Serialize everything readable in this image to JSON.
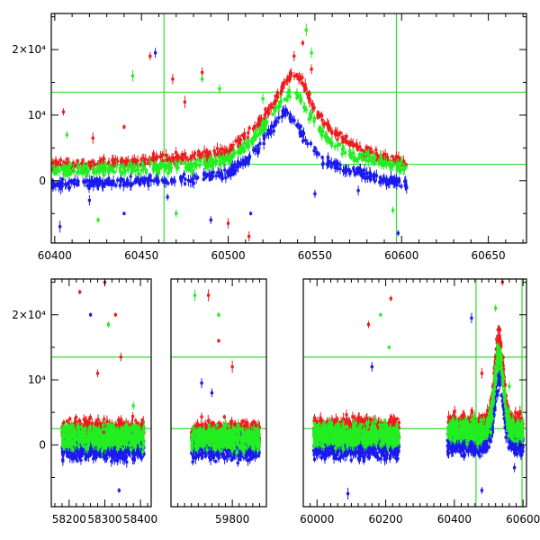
{
  "chart_data": [
    {
      "type": "scatter",
      "title": "",
      "xlabel": "",
      "ylabel": "",
      "xlim": [
        60398,
        60672
      ],
      "ylim": [
        -9500,
        25500
      ],
      "x_ticks": [
        60400,
        60450,
        60500,
        60550,
        60600,
        60650
      ],
      "x_tick_labels": [
        "60400",
        "60450",
        "60500",
        "60550",
        "60600",
        "60650"
      ],
      "y_ticks": [
        0,
        10000,
        20000
      ],
      "y_tick_labels": [
        "0",
        "10⁴",
        "2×10⁴"
      ],
      "vertical_lines": [
        60463,
        60597
      ],
      "horizontal_lines": [
        13500,
        2500
      ],
      "reference_line_color": "#33dd33",
      "series": [
        {
          "color": "#ee1c1c",
          "base": [
            [
              60400,
              2400
            ],
            [
              60430,
              2600
            ],
            [
              60460,
              3200
            ],
            [
              60480,
              3600
            ],
            [
              60500,
              4500
            ],
            [
              60515,
              8000
            ],
            [
              60525,
              11500
            ],
            [
              60532,
              14500
            ],
            [
              60538,
              16500
            ],
            [
              60543,
              15000
            ],
            [
              60550,
              11000
            ],
            [
              60560,
              7500
            ],
            [
              60575,
              5000
            ],
            [
              60590,
              3500
            ],
            [
              60602,
              2600
            ]
          ],
          "outliers": [
            [
              60405,
              10500
            ],
            [
              60422,
              6500
            ],
            [
              60440,
              8200
            ],
            [
              60455,
              19000
            ],
            [
              60468,
              15500
            ],
            [
              60475,
              12000
            ],
            [
              60485,
              16500
            ],
            [
              60500,
              -6500
            ],
            [
              60512,
              -8500
            ],
            [
              60538,
              19000
            ],
            [
              60543,
              21000
            ],
            [
              60548,
              17000
            ]
          ]
        },
        {
          "color": "#1a1aee",
          "base": [
            [
              60400,
              -500
            ],
            [
              60430,
              -300
            ],
            [
              60460,
              0
            ],
            [
              60480,
              300
            ],
            [
              60500,
              1000
            ],
            [
              60515,
              4000
            ],
            [
              60525,
              8000
            ],
            [
              60532,
              10500
            ],
            [
              60538,
              9000
            ],
            [
              60545,
              6000
            ],
            [
              60555,
              3000
            ],
            [
              60570,
              1500
            ],
            [
              60590,
              200
            ],
            [
              60602,
              -500
            ]
          ],
          "outliers": [
            [
              60403,
              -7000
            ],
            [
              60420,
              -3000
            ],
            [
              60440,
              -5000
            ],
            [
              60458,
              19500
            ],
            [
              60465,
              -2500
            ],
            [
              60490,
              -6000
            ],
            [
              60513,
              -5000
            ],
            [
              60550,
              -2000
            ],
            [
              60575,
              -1500
            ],
            [
              60598,
              -8000
            ]
          ]
        },
        {
          "color": "#22ee22",
          "base": [
            [
              60400,
              1500
            ],
            [
              60430,
              1600
            ],
            [
              60460,
              2000
            ],
            [
              60480,
              2300
            ],
            [
              60500,
              3200
            ],
            [
              60515,
              6500
            ],
            [
              60525,
              10000
            ],
            [
              60532,
              12500
            ],
            [
              60538,
              14000
            ],
            [
              60545,
              11000
            ],
            [
              60555,
              7000
            ],
            [
              60570,
              4200
            ],
            [
              60590,
              2800
            ],
            [
              60602,
              2000
            ]
          ],
          "outliers": [
            [
              60407,
              7000
            ],
            [
              60425,
              -6000
            ],
            [
              60445,
              16000
            ],
            [
              60470,
              -5000
            ],
            [
              60485,
              15500
            ],
            [
              60495,
              14000
            ],
            [
              60520,
              12500
            ],
            [
              60545,
              23000
            ],
            [
              60548,
              19500
            ],
            [
              60595,
              -4500
            ]
          ]
        }
      ]
    },
    {
      "type": "scatter",
      "title": "",
      "xlabel": "",
      "ylabel": "",
      "ylim": [
        -9500,
        25500
      ],
      "y_ticks": [
        0,
        10000,
        20000
      ],
      "y_tick_labels": [
        "0",
        "10⁴",
        "2×10⁴"
      ],
      "x_segments": [
        {
          "range": [
            58150,
            58430
          ],
          "ticks": [
            58200,
            58300,
            58400
          ],
          "tick_labels": [
            "58200",
            "58300",
            "58400"
          ]
        },
        {
          "range": [
            59620,
            59900
          ],
          "ticks": [
            59800
          ],
          "tick_labels": [
            "59800"
          ]
        },
        {
          "range": [
            59960,
            60610
          ],
          "ticks": [
            60000,
            60200,
            60400,
            60600
          ],
          "tick_labels": [
            "60000",
            "60200",
            "60400",
            "60600"
          ]
        }
      ],
      "vertical_lines": [
        60463,
        60597
      ],
      "horizontal_lines": [
        13500,
        2500
      ],
      "reference_line_color": "#33dd33",
      "series": [
        {
          "color": "#ee1c1c",
          "ranges": [
            [
              58180,
              58410,
              2000
            ],
            [
              59680,
              59880,
              1800
            ],
            [
              59990,
              60240,
              2300
            ],
            [
              60380,
              60600,
              3000
            ]
          ],
          "peak": [
            60530,
            16500
          ],
          "outliers": [
            [
              58230,
              23500
            ],
            [
              58300,
              25000
            ],
            [
              58330,
              20000
            ],
            [
              58345,
              13500
            ],
            [
              58280,
              11000
            ],
            [
              59730,
              23000
            ],
            [
              59760,
              16000
            ],
            [
              59800,
              12000
            ],
            [
              60150,
              18500
            ],
            [
              60215,
              22500
            ],
            [
              60480,
              11000
            ],
            [
              60540,
              25000
            ]
          ]
        },
        {
          "color": "#1a1aee",
          "ranges": [
            [
              58180,
              58410,
              -500
            ],
            [
              59680,
              59880,
              -400
            ],
            [
              59990,
              60240,
              -300
            ],
            [
              60380,
              60600,
              200
            ]
          ],
          "peak": [
            60530,
            10500
          ],
          "outliers": [
            [
              58260,
              20000
            ],
            [
              58340,
              -7000
            ],
            [
              59710,
              9500
            ],
            [
              59740,
              8000
            ],
            [
              60090,
              -7500
            ],
            [
              60160,
              12000
            ],
            [
              60450,
              19500
            ],
            [
              60480,
              -7000
            ],
            [
              60575,
              -3500
            ]
          ]
        },
        {
          "color": "#22ee22",
          "ranges": [
            [
              58180,
              58410,
              1200
            ],
            [
              59680,
              59880,
              1000
            ],
            [
              59990,
              60240,
              1500
            ],
            [
              60380,
              60600,
              2200
            ]
          ],
          "peak": [
            60530,
            14000
          ],
          "outliers": [
            [
              58310,
              18500
            ],
            [
              58380,
              6000
            ],
            [
              59690,
              23000
            ],
            [
              59760,
              20000
            ],
            [
              60185,
              20000
            ],
            [
              60210,
              15000
            ],
            [
              60560,
              9000
            ],
            [
              60520,
              21000
            ]
          ]
        }
      ]
    }
  ]
}
